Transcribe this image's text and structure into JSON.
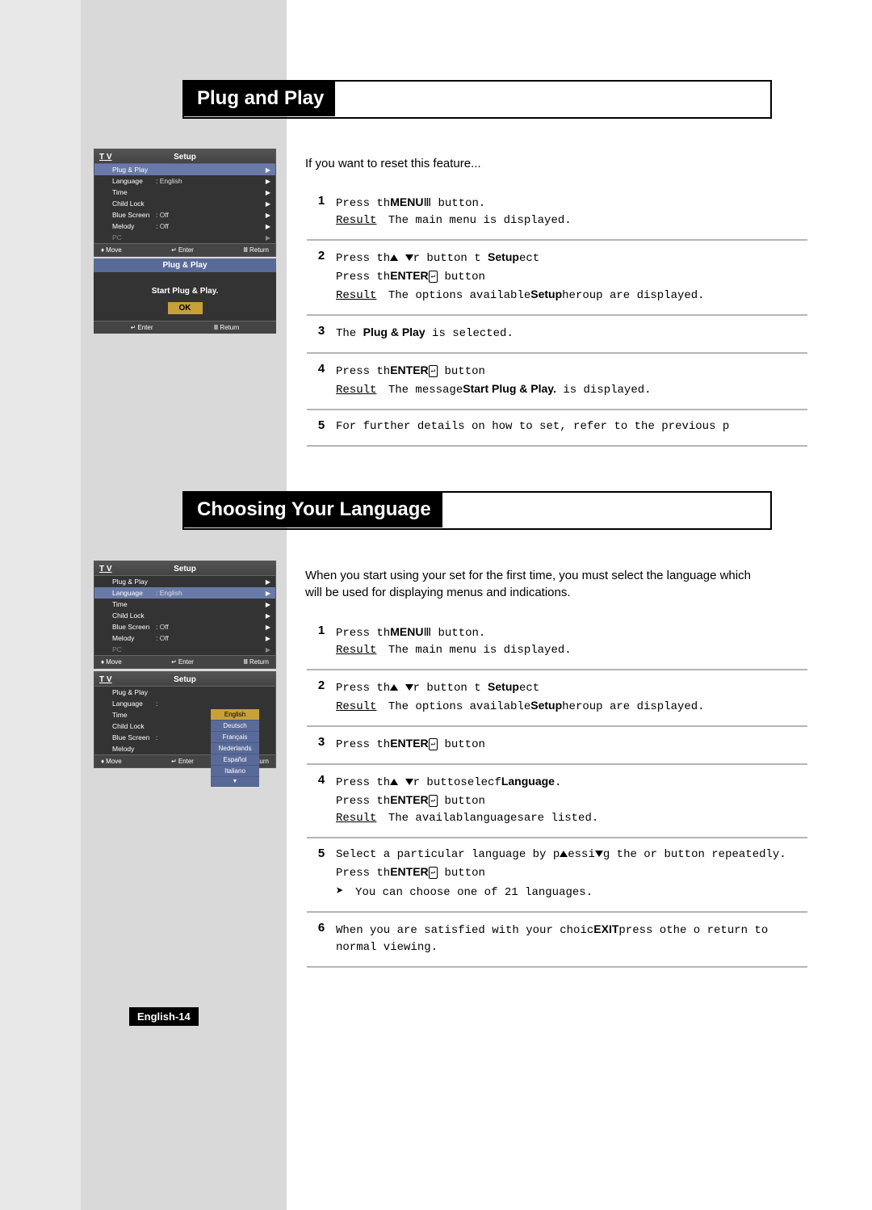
{
  "section1_title": "Plug and Play",
  "section2_title": "Choosing Your Language",
  "intro1": "If you want to reset this feature...",
  "intro2": "When you start using your set for the first time, you must select the language which will be used for displaying menus and indications.",
  "page_num": "English-14",
  "tv_label": "T V",
  "setup_label": "Setup",
  "menu_items": {
    "plug_play": "Plug & Play",
    "language": "Language",
    "time": "Time",
    "child_lock": "Child Lock",
    "blue_screen": "Blue Screen",
    "melody": "Melody",
    "pc": "PC"
  },
  "vals": {
    "english": ": English",
    "off": ": Off"
  },
  "footer": {
    "move": "Move",
    "enter": "Enter",
    "return": "Return"
  },
  "pnp": {
    "title": "Plug & Play",
    "start": "Start Plug & Play.",
    "ok": "OK"
  },
  "langs": [
    "English",
    "Deutsch",
    "Français",
    "Nederlands",
    "Español",
    "Italiano"
  ],
  "steps1": [
    {
      "n": "1",
      "lines": [
        "Press th<b class='menu'>MENU</b>Ⅲ button.",
        "<span class='result'>Result</span> The main menu is displayed."
      ]
    },
    {
      "n": "2",
      "lines": [
        "Press th<span class='triangle-up'></span> <span class='triangle-down'></span>r  button t&nbsp;<b class='menu'>Setup</b>ect",
        "Press th<b class='menu'>ENTER</b><span class='enter-icon'>↵</span> button",
        "<span class='result'>Result</span> The options available<b class='menu'>Setup</b>heroup are displayed."
      ]
    },
    {
      "n": "3",
      "lines": [
        "The <b class='menu'>Plug & Play</b> is selected."
      ]
    },
    {
      "n": "4",
      "lines": [
        "Press th<b class='menu'>ENTER</b><span class='enter-icon'>↵</span> button",
        "<span class='result'>Result</span> The message<b class='menu'>Start Plug & Play.</b> is displayed."
      ]
    },
    {
      "n": "5",
      "lines": [
        "For further details on how to set, refer to the previous p"
      ]
    }
  ],
  "steps2": [
    {
      "n": "1",
      "lines": [
        "Press th<b class='menu'>MENU</b>Ⅲ button.",
        "<span class='result'>Result</span> The main menu is displayed."
      ]
    },
    {
      "n": "2",
      "lines": [
        "Press th<span class='triangle-up'></span> <span class='triangle-down'></span>r  button t&nbsp;<b class='menu'>Setup</b>ect",
        "<span class='result'>Result</span> The options available<b class='menu'>Setup</b>heroup are displayed."
      ]
    },
    {
      "n": "3",
      "lines": [
        "Press th<b class='menu'>ENTER</b><span class='enter-icon'>↵</span> button"
      ]
    },
    {
      "n": "4",
      "lines": [
        "Press th<span class='triangle-up'></span> <span class='triangle-down'></span>r  buttoselecf<b class='menu'>Language</b>.",
        "Press th<b class='menu'>ENTER</b><span class='enter-icon'>↵</span> button",
        "<span class='result'>Result</span> The availablanguagesare listed."
      ]
    },
    {
      "n": "5",
      "lines": [
        "Select a particular language by p<span class='triangle-up'></span>essi<span class='triangle-down'></span>g the  or  button repeatedly.",
        "Press th<b class='menu'>ENTER</b><span class='enter-icon'>↵</span> button",
        "<span class='hand'>➤</span> You can choose one of 21 languages."
      ]
    },
    {
      "n": "6",
      "lines": [
        "When you are satisfied with your choic<b class='menu'>EXIT</b>press othe o return to normal viewing."
      ]
    }
  ]
}
